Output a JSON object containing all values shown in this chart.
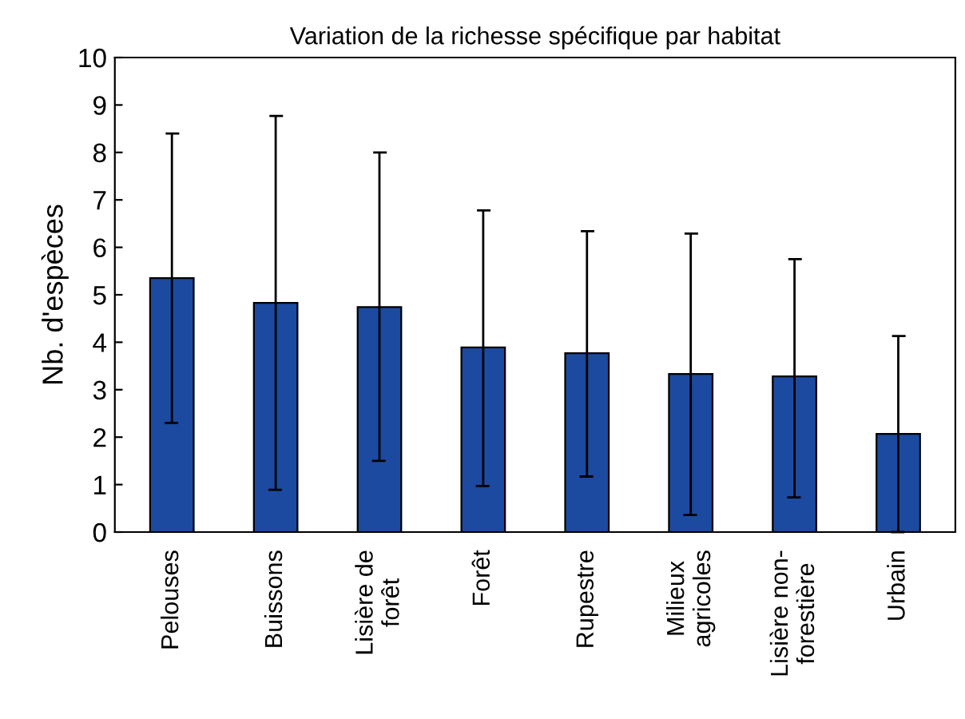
{
  "chart_data": {
    "type": "bar",
    "title": "Variation de la richesse spécifique par habitat",
    "ylabel": "Nb. d'espèces",
    "categories": [
      "Pelouses",
      "Buissons",
      "Lisière de\nforêt",
      "Forêt",
      "Rupestre",
      "Milieux\nagricoles",
      "Lisière non-\nforestière",
      "Urbain"
    ],
    "values": [
      5.35,
      4.83,
      4.74,
      3.89,
      3.77,
      3.33,
      3.28,
      2.07
    ],
    "errors": [
      [
        2.3,
        8.4
      ],
      [
        0.89,
        8.77
      ],
      [
        1.5,
        8.0
      ],
      [
        0.97,
        6.78
      ],
      [
        1.17,
        6.34
      ],
      [
        0.36,
        6.29
      ],
      [
        0.73,
        5.75
      ],
      [
        0,
        4.13
      ]
    ],
    "color": "#1c4aa0",
    "ylim": [
      0,
      10
    ],
    "yticks": [
      0,
      1,
      2,
      3,
      4,
      5,
      6,
      7,
      8,
      9,
      10
    ],
    "grid": false
  }
}
